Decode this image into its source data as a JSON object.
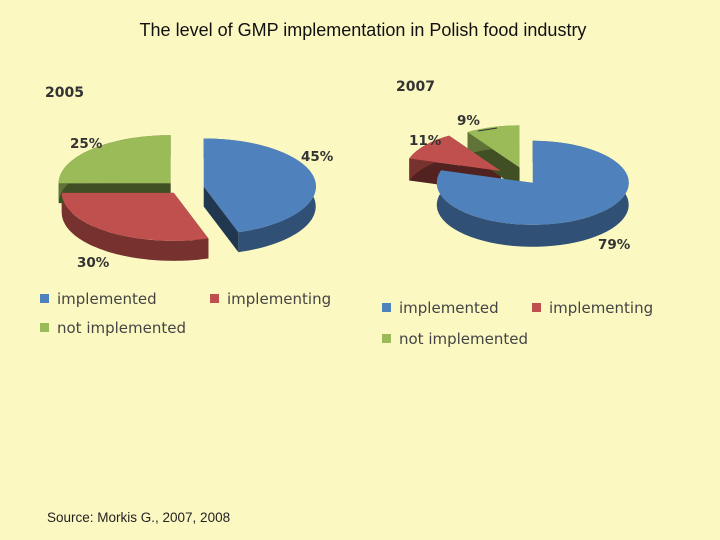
{
  "title": "The level of GMP implementation in Polish food industry",
  "source": "Source: Morkis G., 2007, 2008",
  "colors": {
    "implemented": "#4f81bd",
    "implementing": "#c0504d",
    "not_implemented": "#9bbb59"
  },
  "chart_data": [
    {
      "type": "pie",
      "title": "2005",
      "categories": [
        "implemented",
        "implementing",
        "not implemented"
      ],
      "values": [
        45,
        30,
        25
      ],
      "labels": [
        "45%",
        "30%",
        "25%"
      ],
      "legend": [
        "implemented",
        "implementing",
        "not implemented"
      ]
    },
    {
      "type": "pie",
      "title": "2007",
      "categories": [
        "implemented",
        "implementing",
        "not implemented"
      ],
      "values": [
        79,
        11,
        9
      ],
      "labels": [
        "79%",
        "11%",
        "9%"
      ],
      "legend": [
        "implemented",
        "implementing",
        "not implemented"
      ]
    }
  ]
}
